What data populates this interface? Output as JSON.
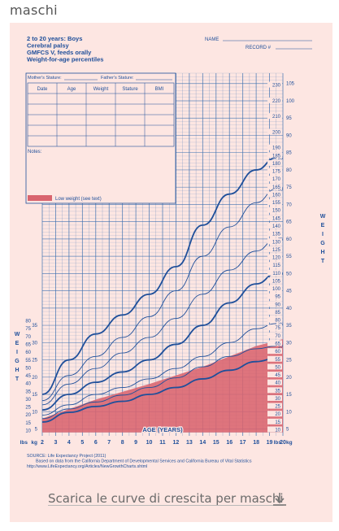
{
  "page": {
    "heading": "maschi"
  },
  "download": {
    "label": "Scarica le curve di crescita per maschi",
    "icon": "download-icon"
  },
  "chart_data": {
    "type": "line",
    "title_lines": [
      "2 to 20 years: Boys",
      "Cerebral palsy",
      "GMFCS V, feeds orally",
      "Weight-for-age percentiles"
    ],
    "name_label": "NAME",
    "record_label": "RECORD #",
    "stature_labels": [
      "Mother's Stature",
      "Father's Stature"
    ],
    "table_headers": [
      "Date",
      "Age",
      "Weight",
      "Stature",
      "BMI"
    ],
    "notes_label": "Notes:",
    "legend": {
      "label": "Low weight (see text)",
      "color": "#d9646e"
    },
    "xlabel": "AGE (YEARS)",
    "ylabel_left": "W E I G H T",
    "ylabel_right": "W E I G H T",
    "unit_kg": "kg",
    "unit_lbs": "lbs",
    "x_ticks": [
      2,
      3,
      4,
      5,
      6,
      7,
      8,
      9,
      10,
      11,
      12,
      13,
      14,
      15,
      16,
      17,
      18,
      19,
      20
    ],
    "xlim": [
      2,
      20
    ],
    "ylim_kg": [
      3,
      108
    ],
    "kg_ticks": [
      5,
      10,
      15,
      20,
      25,
      30,
      35,
      40,
      45,
      50,
      55,
      60,
      65,
      70,
      75,
      80,
      85,
      90,
      95,
      100,
      105
    ],
    "lbs_ticks": [
      10,
      15,
      20,
      25,
      30,
      35,
      40,
      45,
      50,
      55,
      60,
      65,
      70,
      75,
      80,
      85,
      90,
      95,
      100,
      105,
      110,
      115,
      120,
      125,
      130,
      135,
      140,
      145,
      150,
      155,
      160,
      165,
      170,
      175,
      180,
      185,
      190,
      200,
      210,
      220,
      230
    ],
    "low_weight_area": {
      "x": [
        2,
        6,
        10,
        14,
        18,
        20
      ],
      "kg": [
        8,
        13.5,
        18,
        23,
        29,
        31
      ]
    },
    "series": [
      {
        "name": "95",
        "x": [
          2,
          4,
          6,
          8,
          10,
          12,
          14,
          16,
          18,
          19.5
        ],
        "kg": [
          15,
          25,
          32.5,
          38,
          44,
          52,
          64,
          73,
          80,
          83.5
        ]
      },
      {
        "name": "90",
        "x": [
          2,
          4,
          6,
          8,
          10,
          12,
          14,
          16,
          18,
          19.5
        ],
        "kg": [
          13.2,
          20.5,
          26,
          31.5,
          37.5,
          45,
          55,
          63.5,
          70.5,
          74.5
        ]
      },
      {
        "name": "75",
        "x": [
          2,
          4,
          6,
          8,
          10,
          12,
          14,
          16,
          18,
          19.5
        ],
        "kg": [
          12,
          18,
          22.5,
          27,
          31.5,
          37,
          44,
          51,
          56.5,
          60
        ]
      },
      {
        "name": "50",
        "x": [
          2,
          4,
          6,
          8,
          10,
          12,
          14,
          16,
          18,
          19.5
        ],
        "kg": [
          10.5,
          15,
          18.5,
          21.5,
          25,
          29.5,
          35,
          41.5,
          47,
          50
        ]
      },
      {
        "name": "25",
        "x": [
          2,
          4,
          6,
          8,
          10,
          12,
          14,
          16,
          18,
          19.5
        ],
        "kg": [
          9,
          12,
          15,
          17,
          19.5,
          22.5,
          26,
          30,
          34,
          35.5
        ]
      },
      {
        "name": "10",
        "x": [
          2,
          4,
          6,
          8,
          10,
          12,
          14,
          16,
          18,
          19.5
        ],
        "kg": [
          8,
          10.8,
          12.8,
          14.8,
          17,
          19.8,
          23,
          26,
          28.2,
          29
        ]
      },
      {
        "name": "5",
        "x": [
          2,
          4,
          6,
          8,
          10,
          12,
          14,
          16,
          18,
          19.5
        ],
        "kg": [
          7,
          9.8,
          11.5,
          13,
          15,
          17,
          19.5,
          22,
          24.5,
          25.5
        ]
      }
    ],
    "source_lines": [
      "SOURCE: Life Expectancy Project (2011)",
      "Based on data from the California Department of Developmental Services and California Bureau of Vital Statistics",
      "http://www.LifeExpectancy.org/Articles/NewGrowthCharts.shtml"
    ],
    "grid": true,
    "colors": {
      "background": "#fde6e2",
      "grid": "#3a6fb0",
      "curve": "#1f4f9a",
      "fill": "#d9646e"
    }
  }
}
